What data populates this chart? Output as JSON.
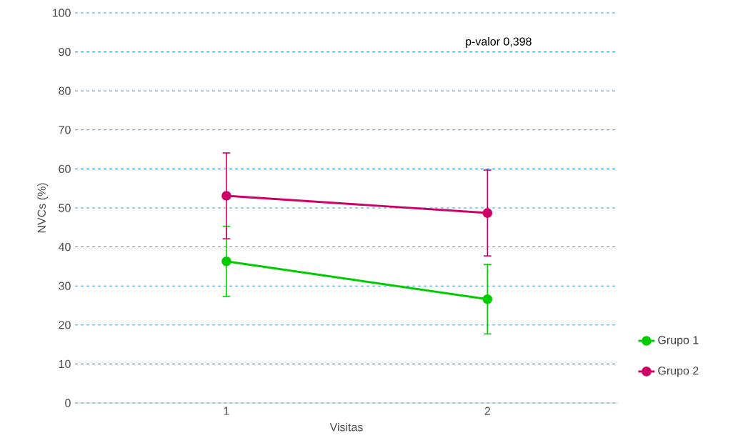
{
  "chart_data": {
    "type": "line",
    "xlabel": "Visitas",
    "ylabel": "NVCs (%)",
    "categories": [
      "1",
      "2"
    ],
    "series": [
      {
        "name": "Grupo 1",
        "color": "#00cc00",
        "values": [
          36.3,
          26.6
        ],
        "errors": [
          9,
          8.9
        ]
      },
      {
        "name": "Grupo 2",
        "color": "#cc0066",
        "values": [
          53.1,
          48.7
        ],
        "errors": [
          11,
          11
        ]
      }
    ],
    "ylim": [
      0,
      100
    ],
    "yticks": [
      0,
      10,
      20,
      30,
      40,
      50,
      60,
      70,
      80,
      90,
      100
    ],
    "grid": "y",
    "legend": "right",
    "marker": "circle",
    "line_style": "solid",
    "annotations": [
      "p-valor 0,398"
    ]
  }
}
